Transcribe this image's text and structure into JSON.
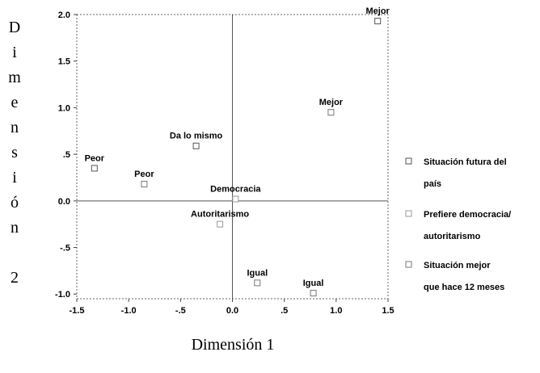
{
  "chart_data": {
    "type": "scatter",
    "xlabel": "Dimensión 1",
    "ylabel": "Dimensión 2",
    "xlim": [
      -1.5,
      1.5
    ],
    "ylim": [
      -1.05,
      2.0
    ],
    "x_ticks": [
      -1.5,
      -1.0,
      -0.5,
      0.0,
      0.5,
      1.0,
      1.5
    ],
    "x_tick_labels": [
      "-1.5",
      "-1.0",
      "-.5",
      "0.0",
      ".5",
      "1.0",
      "1.5"
    ],
    "y_ticks": [
      2.0,
      1.5,
      1.0,
      0.5,
      0.0,
      -0.5,
      -1.0
    ],
    "y_tick_labels": [
      "2.0",
      "1.5",
      "1.0",
      ".5",
      "0.0",
      "-.5",
      "-1.0"
    ],
    "grid": false,
    "reference_lines": {
      "x": 0,
      "y": 0
    },
    "legend_position": "right",
    "series": [
      {
        "name": "Situación futura del país",
        "legend_lines": [
          "Situación futura del",
          "país"
        ],
        "color": "#555555",
        "points": [
          {
            "x": 1.4,
            "y": 1.93,
            "label": "Mejor"
          },
          {
            "x": -0.35,
            "y": 0.59,
            "label": "Da lo mismo"
          },
          {
            "x": -1.33,
            "y": 0.35,
            "label": "Peor"
          }
        ]
      },
      {
        "name": "Prefiere democracia/ autoritarismo",
        "legend_lines": [
          "Prefiere democracia/",
          "autoritarismo"
        ],
        "color": "#999999",
        "points": [
          {
            "x": 0.03,
            "y": 0.02,
            "label": "Democracia"
          },
          {
            "x": -0.12,
            "y": -0.25,
            "label": "Autoritarismo"
          }
        ]
      },
      {
        "name": "Situación mejor que hace 12 meses",
        "legend_lines": [
          "Situación mejor",
          "que hace 12 meses"
        ],
        "color": "#777777",
        "points": [
          {
            "x": 0.95,
            "y": 0.95,
            "label": "Mejor"
          },
          {
            "x": -0.85,
            "y": 0.18,
            "label": "Peor"
          },
          {
            "x": 0.24,
            "y": -0.88,
            "label": "Igual"
          },
          {
            "x": 0.78,
            "y": -0.99,
            "label": "Igual"
          }
        ]
      }
    ]
  }
}
